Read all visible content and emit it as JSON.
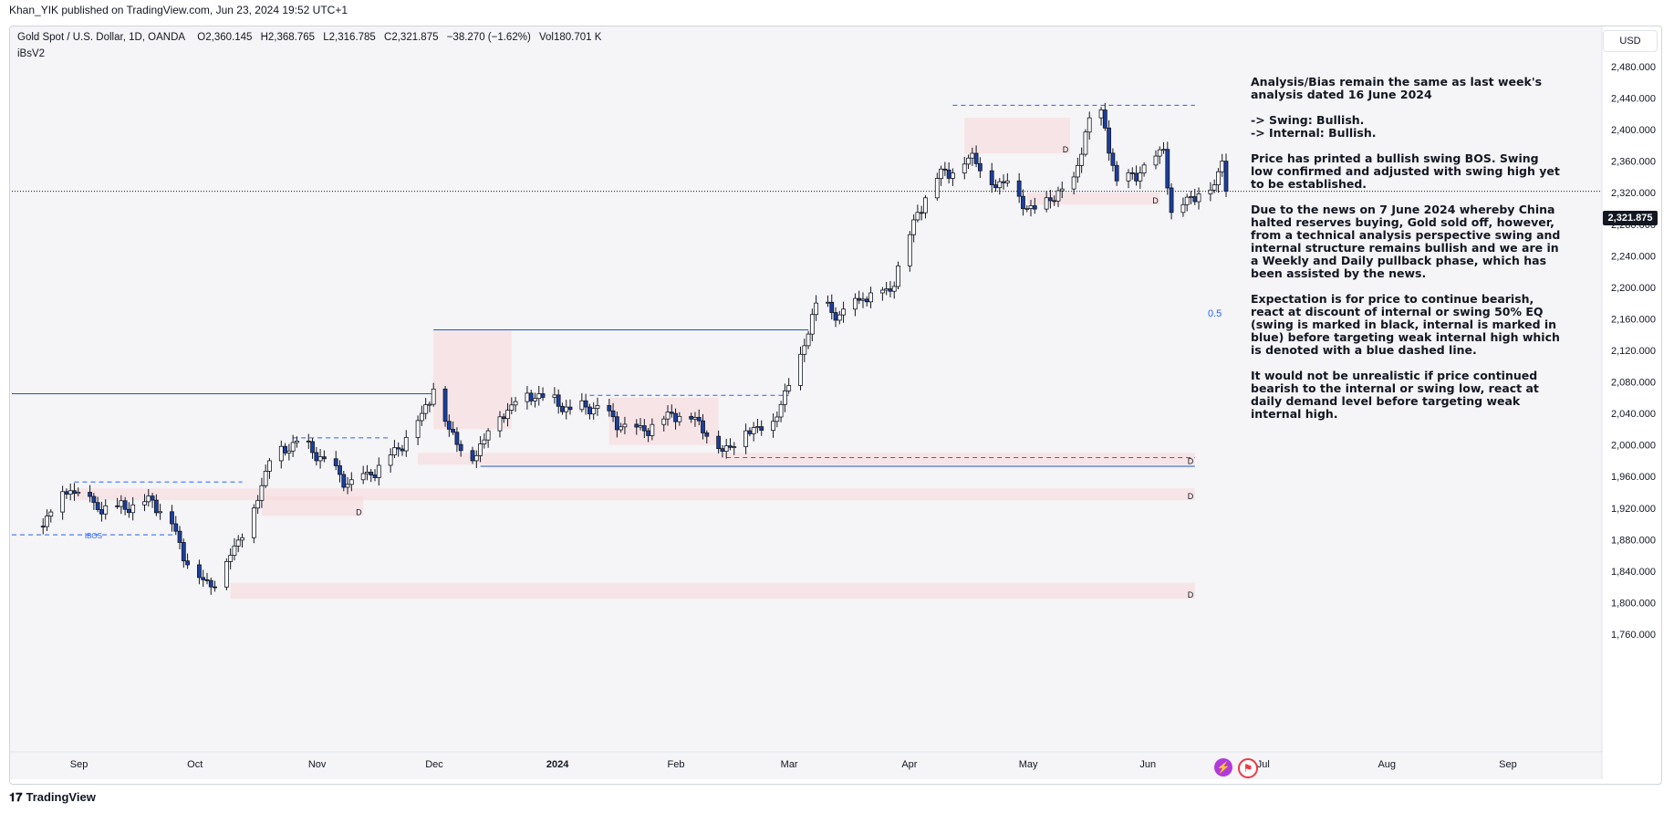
{
  "publisher": "Khan_YIK published on TradingView.com, Jun 23, 2024 19:52 UTC+1",
  "legend": {
    "symbol": "Gold Spot / U.S. Dollar, 1D, OANDA",
    "open": "O2,360.145",
    "high": "H2,368.765",
    "low": "L2,316.785",
    "close": "C2,321.875",
    "change": "−38.270 (−1.62%)",
    "volume": "Vol180.701 K",
    "indicator": "iBsV2"
  },
  "currency_button": "USD",
  "last_price_label": "2,321.875",
  "half_label": "0.5",
  "footer_brand": "TradingView",
  "notes": [
    "Analysis/Bias remain the same as last week's analysis dated 16 June 2024",
    "-> Swing: Bullish.",
    "-> Internal: Bullish.",
    "Price has printed a bullish swing BOS.  Swing low confirmed and adjusted with swing high yet to be established.",
    "Due to the news on 7 June 2024 whereby China halted reserves buying, Gold sold off, however, from a technical analysis perspective swing and internal structure remains bullish and we are in a Weekly and Daily pullback phase, which has been assisted by the news.",
    "Expectation is for price to continue bearish, react at discount of internal or swing 50% EQ (swing is marked in black, internal is marked in blue) before targeting weak internal high which is denoted with a blue dashed line.",
    "It would not be unrealistic if price continued bearish to the internal or swing low, react at daily demand level before targeting weak internal high."
  ],
  "colors": {
    "bull": "#ffffff",
    "bear": "#1a3fa0",
    "wick": "#131722",
    "zone": "#f8d7da",
    "blue_line": "#2962ff",
    "dark_line": "#131722"
  },
  "chart_data": {
    "type": "candlestick",
    "x_ticks": [
      "Sep",
      "Oct",
      "Nov",
      "Dec",
      "2024",
      "Feb",
      "Mar",
      "Apr",
      "May",
      "Jun",
      "Jul",
      "Aug",
      "Sep"
    ],
    "y_ticks": [
      2480,
      2440,
      2400,
      2360,
      2320,
      2280,
      2240,
      2200,
      2160,
      2120,
      2080,
      2040,
      2000,
      1960,
      1920,
      1880,
      1840,
      1800,
      1760
    ],
    "ylim": [
      1745,
      2500
    ],
    "last_price": 2321.875,
    "close_path": [
      {
        "date": "2023-08-22",
        "close": 1897
      },
      {
        "date": "2023-08-25",
        "close": 1915
      },
      {
        "date": "2023-08-30",
        "close": 1942
      },
      {
        "date": "2023-09-01",
        "close": 1940
      },
      {
        "date": "2023-09-06",
        "close": 1918
      },
      {
        "date": "2023-09-11",
        "close": 1922
      },
      {
        "date": "2023-09-15",
        "close": 1924
      },
      {
        "date": "2023-09-20",
        "close": 1930
      },
      {
        "date": "2023-09-25",
        "close": 1900
      },
      {
        "date": "2023-09-29",
        "close": 1848
      },
      {
        "date": "2023-10-05",
        "close": 1820
      },
      {
        "date": "2023-10-10",
        "close": 1860
      },
      {
        "date": "2023-10-16",
        "close": 1920
      },
      {
        "date": "2023-10-20",
        "close": 1980
      },
      {
        "date": "2023-10-27",
        "close": 2005
      },
      {
        "date": "2023-11-02",
        "close": 1985
      },
      {
        "date": "2023-11-09",
        "close": 1950
      },
      {
        "date": "2023-11-15",
        "close": 1962
      },
      {
        "date": "2023-11-22",
        "close": 1995
      },
      {
        "date": "2023-11-28",
        "close": 2040
      },
      {
        "date": "2023-12-01",
        "close": 2071
      },
      {
        "date": "2023-12-05",
        "close": 2020
      },
      {
        "date": "2023-12-11",
        "close": 1980
      },
      {
        "date": "2023-12-15",
        "close": 2018
      },
      {
        "date": "2023-12-22",
        "close": 2055
      },
      {
        "date": "2023-12-28",
        "close": 2065
      },
      {
        "date": "2024-01-05",
        "close": 2045
      },
      {
        "date": "2024-01-12",
        "close": 2050
      },
      {
        "date": "2024-01-18",
        "close": 2023
      },
      {
        "date": "2024-01-24",
        "close": 2018
      },
      {
        "date": "2024-01-31",
        "close": 2040
      },
      {
        "date": "2024-02-06",
        "close": 2035
      },
      {
        "date": "2024-02-13",
        "close": 1992
      },
      {
        "date": "2024-02-19",
        "close": 2018
      },
      {
        "date": "2024-02-26",
        "close": 2030
      },
      {
        "date": "2024-03-04",
        "close": 2115
      },
      {
        "date": "2024-03-08",
        "close": 2180
      },
      {
        "date": "2024-03-14",
        "close": 2165
      },
      {
        "date": "2024-03-20",
        "close": 2185
      },
      {
        "date": "2024-03-27",
        "close": 2195
      },
      {
        "date": "2024-04-03",
        "close": 2295
      },
      {
        "date": "2024-04-09",
        "close": 2350
      },
      {
        "date": "2024-04-12",
        "close": 2345
      },
      {
        "date": "2024-04-17",
        "close": 2370
      },
      {
        "date": "2024-04-22",
        "close": 2330
      },
      {
        "date": "2024-04-26",
        "close": 2335
      },
      {
        "date": "2024-05-01",
        "close": 2300
      },
      {
        "date": "2024-05-07",
        "close": 2310
      },
      {
        "date": "2024-05-13",
        "close": 2340
      },
      {
        "date": "2024-05-17",
        "close": 2415
      },
      {
        "date": "2024-05-20",
        "close": 2425
      },
      {
        "date": "2024-05-24",
        "close": 2335
      },
      {
        "date": "2024-05-30",
        "close": 2345
      },
      {
        "date": "2024-06-05",
        "close": 2375
      },
      {
        "date": "2024-06-07",
        "close": 2295
      },
      {
        "date": "2024-06-12",
        "close": 2315
      },
      {
        "date": "2024-06-18",
        "close": 2330
      },
      {
        "date": "2024-06-20",
        "close": 2360
      },
      {
        "date": "2024-06-21",
        "close": 2322
      }
    ],
    "zones": [
      {
        "from": "2023-08-31",
        "to": "2024-06-13",
        "low": 1930,
        "high": 1945,
        "label": "D"
      },
      {
        "from": "2023-10-10",
        "to": "2024-06-13",
        "low": 1805,
        "high": 1825,
        "label": "D"
      },
      {
        "from": "2023-10-18",
        "to": "2023-11-13",
        "low": 1910,
        "high": 1935,
        "label": "D"
      },
      {
        "from": "2023-11-27",
        "to": "2024-06-13",
        "low": 1975,
        "high": 1990,
        "label": "D"
      },
      {
        "from": "2023-12-01",
        "to": "2023-12-21",
        "low": 2020,
        "high": 2145,
        "label": ""
      },
      {
        "from": "2024-04-15",
        "to": "2024-05-12",
        "low": 2370,
        "high": 2415,
        "label": "D"
      },
      {
        "from": "2024-05-01",
        "to": "2024-06-04",
        "low": 2305,
        "high": 2320,
        "label": "D"
      },
      {
        "from": "2024-01-15",
        "to": "2024-02-12",
        "low": 2000,
        "high": 2060,
        "label": ""
      }
    ],
    "lines": [
      {
        "kind": "solid-blue",
        "from": "2023-08-15",
        "to": "2023-12-01",
        "price": 2065
      },
      {
        "kind": "solid-blue",
        "from": "2023-12-01",
        "to": "2024-03-06",
        "price": 2146
      },
      {
        "kind": "solid-blue",
        "from": "2023-12-13",
        "to": "2024-06-13",
        "price": 1973
      },
      {
        "kind": "dashed-blue",
        "from": "2024-02-14",
        "to": "2024-06-13",
        "price": 1984
      },
      {
        "kind": "dashed-blue",
        "from": "2024-04-12",
        "to": "2024-06-13",
        "price": 2431
      },
      {
        "kind": "dashed-blue",
        "from": "2023-08-15",
        "to": "2023-09-26",
        "price": 1886,
        "label": "IBOS"
      },
      {
        "kind": "dashed-blue",
        "from": "2023-08-31",
        "to": "2023-10-13",
        "price": 1953
      },
      {
        "kind": "dashed-blue",
        "from": "2023-10-26",
        "to": "2023-11-20",
        "price": 2009
      },
      {
        "kind": "dashed-blue",
        "from": "2024-01-10",
        "to": "2024-03-01",
        "price": 2063
      },
      {
        "kind": "dotted-dark",
        "from": "2023-08-15",
        "to": "2024-06-21",
        "price": 2321.875
      }
    ]
  }
}
